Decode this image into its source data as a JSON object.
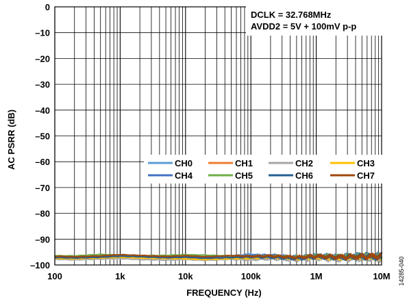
{
  "chart_data": {
    "type": "line",
    "title": "",
    "xlabel": "FREQUENCY (Hz)",
    "ylabel": "AC PSRR (dB)",
    "xscale": "log",
    "xlim": [
      100,
      10000000
    ],
    "ylim": [
      -100,
      0
    ],
    "grid": true,
    "xticks": [
      {
        "value": 100,
        "label": "100"
      },
      {
        "value": 1000,
        "label": "1k"
      },
      {
        "value": 10000,
        "label": "10k"
      },
      {
        "value": 100000,
        "label": "100k"
      },
      {
        "value": 1000000,
        "label": "1M"
      },
      {
        "value": 10000000,
        "label": "10M"
      }
    ],
    "yticks": [
      {
        "value": 0,
        "label": "0"
      },
      {
        "value": -10,
        "label": "–10"
      },
      {
        "value": -20,
        "label": "–20"
      },
      {
        "value": -30,
        "label": "–30"
      },
      {
        "value": -40,
        "label": "–40"
      },
      {
        "value": -50,
        "label": "–50"
      },
      {
        "value": -60,
        "label": "–60"
      },
      {
        "value": -70,
        "label": "–70"
      },
      {
        "value": -80,
        "label": "–80"
      },
      {
        "value": -90,
        "label": "–90"
      },
      {
        "value": -100,
        "label": "–100"
      }
    ],
    "annotations": [
      "DCLK = 32.768MHz",
      "AVDD2 = 5V + 100mV p-p"
    ],
    "legend_position": "center-right",
    "series": [
      {
        "name": "CH0",
        "color": "#5b9bd5",
        "x": [
          100,
          200,
          500,
          1000,
          2000,
          5000,
          10000,
          20000,
          50000,
          100000,
          200000,
          500000,
          1000000,
          2000000,
          5000000,
          10000000
        ],
        "y": [
          -97.0,
          -97.2,
          -96.8,
          -96.5,
          -96.9,
          -97.1,
          -96.8,
          -97.0,
          -96.6,
          -95.8,
          -96.9,
          -97.3,
          -96.5,
          -96.9,
          -97.2,
          -96.4
        ]
      },
      {
        "name": "CH1",
        "color": "#ed7d31",
        "x": [
          100,
          200,
          500,
          1000,
          2000,
          5000,
          10000,
          20000,
          50000,
          100000,
          200000,
          500000,
          1000000,
          2000000,
          5000000,
          10000000
        ],
        "y": [
          -97.3,
          -97.4,
          -97.1,
          -96.8,
          -97.0,
          -97.4,
          -97.2,
          -97.6,
          -97.3,
          -97.5,
          -97.2,
          -97.6,
          -97.0,
          -97.4,
          -96.9,
          -97.1
        ]
      },
      {
        "name": "CH2",
        "color": "#a5a5a5",
        "x": [
          100,
          200,
          500,
          1000,
          2000,
          5000,
          10000,
          20000,
          50000,
          100000,
          200000,
          500000,
          1000000,
          2000000,
          5000000,
          10000000
        ],
        "y": [
          -97.8,
          -98.0,
          -97.7,
          -97.5,
          -97.9,
          -98.1,
          -97.9,
          -98.2,
          -97.8,
          -98.0,
          -97.6,
          -98.0,
          -97.5,
          -97.9,
          -97.4,
          -97.7
        ]
      },
      {
        "name": "CH3",
        "color": "#ffc000",
        "x": [
          100,
          200,
          500,
          1000,
          2000,
          5000,
          10000,
          20000,
          50000,
          100000,
          200000,
          500000,
          1000000,
          2000000,
          5000000,
          10000000
        ],
        "y": [
          -97.5,
          -97.6,
          -97.3,
          -97.0,
          -97.3,
          -97.5,
          -97.6,
          -97.9,
          -97.5,
          -97.4,
          -96.8,
          -97.4,
          -96.9,
          -97.2,
          -96.6,
          -96.8
        ]
      },
      {
        "name": "CH4",
        "color": "#4472c4",
        "x": [
          100,
          200,
          500,
          1000,
          2000,
          5000,
          10000,
          20000,
          50000,
          100000,
          200000,
          500000,
          1000000,
          2000000,
          5000000,
          10000000
        ],
        "y": [
          -96.9,
          -97.1,
          -96.7,
          -96.3,
          -96.7,
          -96.9,
          -96.6,
          -96.9,
          -96.5,
          -96.4,
          -96.2,
          -97.0,
          -96.4,
          -96.7,
          -96.3,
          -96.6
        ]
      },
      {
        "name": "CH5",
        "color": "#70ad47",
        "x": [
          100,
          200,
          500,
          1000,
          2000,
          5000,
          10000,
          20000,
          50000,
          100000,
          200000,
          500000,
          1000000,
          2000000,
          5000000,
          10000000
        ],
        "y": [
          -96.4,
          -96.5,
          -95.9,
          -96.2,
          -96.4,
          -96.3,
          -96.0,
          -96.2,
          -96.5,
          -96.9,
          -96.6,
          -97.1,
          -96.5,
          -96.8,
          -96.5,
          -96.9
        ]
      },
      {
        "name": "CH6",
        "color": "#255e91",
        "x": [
          100,
          200,
          500,
          1000,
          2000,
          5000,
          10000,
          20000,
          50000,
          100000,
          200000,
          500000,
          1000000,
          2000000,
          5000000,
          10000000
        ],
        "y": [
          -97.1,
          -97.3,
          -97.0,
          -96.6,
          -96.8,
          -97.2,
          -97.0,
          -97.4,
          -97.1,
          -96.9,
          -97.0,
          -97.5,
          -96.8,
          -97.1,
          -96.7,
          -97.0
        ]
      },
      {
        "name": "CH7",
        "color": "#9e480e",
        "x": [
          100,
          200,
          500,
          1000,
          2000,
          5000,
          10000,
          20000,
          50000,
          100000,
          200000,
          500000,
          1000000,
          2000000,
          5000000,
          10000000
        ],
        "y": [
          -96.6,
          -96.8,
          -96.5,
          -96.0,
          -96.3,
          -96.7,
          -96.4,
          -96.8,
          -96.4,
          -96.6,
          -96.5,
          -97.0,
          -96.6,
          -96.9,
          -96.8,
          -96.5
        ]
      }
    ]
  },
  "figure_id": "14285-040"
}
